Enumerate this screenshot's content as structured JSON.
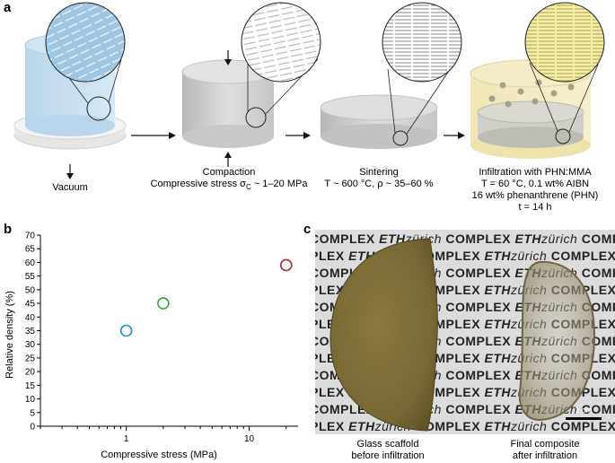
{
  "panels": {
    "a": "a",
    "b": "b",
    "c": "c"
  },
  "panel_a": {
    "vacuum": "Vacuum",
    "compaction_title": "Compaction",
    "compaction_detail": "Compressive stress σ",
    "compaction_sub": "C",
    "compaction_range": " ~ 1–20 MPa",
    "sintering_title": "Sintering",
    "sintering_detail": "T ~ 600 °C, ρ ~ 35–60 %",
    "infiltration_line1": "Infiltration with PHN:MMA",
    "infiltration_line2": "T = 60 °C, 0.1 wt% AIBN",
    "infiltration_line3": "16 wt% phenanthrene (PHN)",
    "infiltration_line4": "t = 14 h"
  },
  "chart_data": {
    "type": "scatter",
    "xlabel": "Compressive stress (MPa)",
    "ylabel": "Relative density (%)",
    "xscale": "log",
    "xlim": [
      0.2,
      25
    ],
    "ylim": [
      0,
      70
    ],
    "xticks": [
      1,
      10
    ],
    "yticks": [
      0,
      5,
      10,
      15,
      20,
      25,
      30,
      35,
      40,
      45,
      50,
      55,
      60,
      65,
      70
    ],
    "points": [
      {
        "x": 1,
        "y": 35,
        "color": "#1f8fd0"
      },
      {
        "x": 2,
        "y": 45,
        "color": "#3aa63a"
      },
      {
        "x": 20,
        "y": 59,
        "color": "#b0243a"
      }
    ]
  },
  "panel_c": {
    "watermark_complex": "COMPLEX",
    "watermark_eth": "ETH",
    "watermark_zurich": "zürich",
    "scale_bar": "1 cm",
    "left_caption_1": "Glass scaffold",
    "left_caption_2": "before infiltration",
    "right_caption_1": "Final composite",
    "right_caption_2": "after infiltration"
  }
}
